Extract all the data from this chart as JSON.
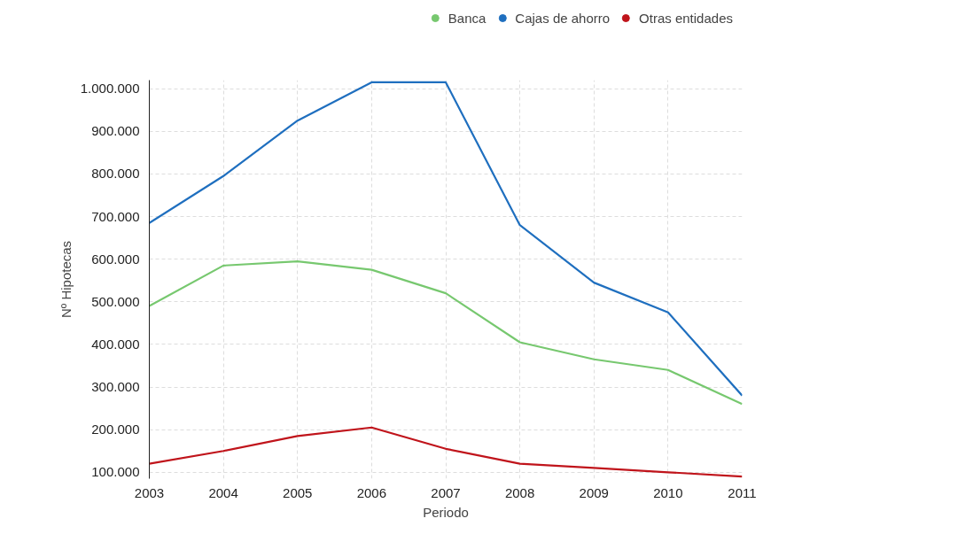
{
  "chart_data": {
    "type": "line",
    "xlabel": "Periodo",
    "ylabel": "Nº Hipotecas",
    "x": [
      2003,
      2004,
      2005,
      2006,
      2007,
      2008,
      2009,
      2010,
      2011
    ],
    "series": [
      {
        "name": "Banca",
        "color": "#77c86f",
        "values": [
          490000,
          585000,
          595000,
          575000,
          520000,
          405000,
          365000,
          340000,
          260000
        ]
      },
      {
        "name": "Cajas de ahorro",
        "color": "#1f6fbf",
        "values": [
          685000,
          795000,
          925000,
          1015000,
          1015000,
          680000,
          545000,
          475000,
          280000
        ]
      },
      {
        "name": "Otras entidades",
        "color": "#c0141b",
        "values": [
          120000,
          150000,
          185000,
          205000,
          155000,
          120000,
          110000,
          100000,
          90000
        ]
      }
    ],
    "xlim": [
      2003,
      2011
    ],
    "xticks": [
      2003,
      2004,
      2005,
      2006,
      2007,
      2008,
      2009,
      2010,
      2011
    ],
    "ylim": [
      85000,
      1020000
    ],
    "yticks": [
      {
        "value": 100000,
        "label": "100.000"
      },
      {
        "value": 200000,
        "label": "200.000"
      },
      {
        "value": 300000,
        "label": "300.000"
      },
      {
        "value": 400000,
        "label": "400.000"
      },
      {
        "value": 500000,
        "label": "500.000"
      },
      {
        "value": 600000,
        "label": "600.000"
      },
      {
        "value": 700000,
        "label": "700.000"
      },
      {
        "value": 800000,
        "label": "800.000"
      },
      {
        "value": 900000,
        "label": "900.000"
      },
      {
        "value": 1000000,
        "label": "1.000.000"
      }
    ],
    "grid": true,
    "legend": "top right",
    "line_style": "solid"
  }
}
